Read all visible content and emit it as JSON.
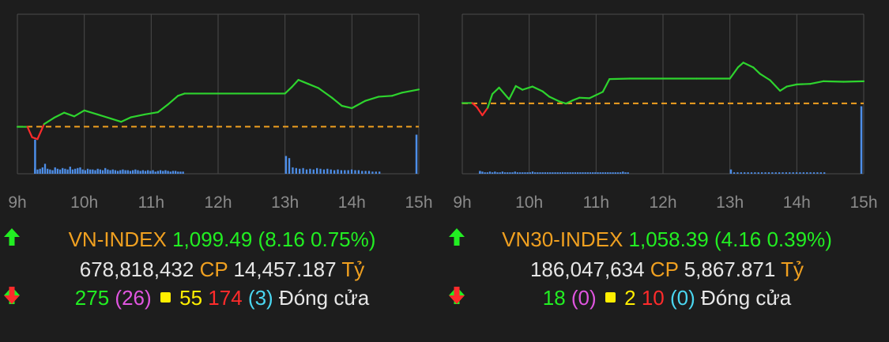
{
  "colors": {
    "up": "#22ee22",
    "down": "#ff2b2b",
    "ref": "#f0a020",
    "ceiling": "#e055e0",
    "floor": "#4ad6f0",
    "unchanged": "#ffee00",
    "line": "#2ed42e",
    "volume": "#4d8ee8",
    "grid": "#4a4a4a",
    "text": "#e6e6e6",
    "name": "#f0a020"
  },
  "panels": [
    {
      "name": "VN-INDEX",
      "value": "1,099.49",
      "change": "(8.16 0.75%)",
      "volume": "678,818,432",
      "cp_label": "CP",
      "amount": "14,457.187",
      "unit": "Tỷ",
      "advances": "275",
      "ceiling_count": "(26)",
      "unchanged": "55",
      "declines": "174",
      "floor_count": "(3)",
      "status": "Đóng cửa"
    },
    {
      "name": "VN30-INDEX",
      "value": "1,058.39",
      "change": "(4.16 0.39%)",
      "volume": "186,047,634",
      "cp_label": "CP",
      "amount": "5,867.871",
      "unit": "Tỷ",
      "advances": "18",
      "ceiling_count": "(0)",
      "unchanged": "2",
      "declines": "10",
      "floor_count": "(0)",
      "status": "Đóng cửa"
    }
  ],
  "chart_data": [
    {
      "type": "line",
      "title": "VN-INDEX",
      "x_ticks": [
        "9h",
        "10h",
        "11h",
        "12h",
        "13h",
        "14h",
        "15h"
      ],
      "reference": 1091.33,
      "ylim": [
        1081,
        1116
      ],
      "series": [
        {
          "x": [
            9.0,
            9.15,
            9.22,
            9.3,
            9.4,
            9.55,
            9.7,
            9.85,
            10.0,
            10.2,
            10.4,
            10.55,
            10.7,
            10.9,
            11.1,
            11.25,
            11.4,
            11.5,
            11.8,
            12.3,
            12.8,
            13.0,
            13.1,
            13.2,
            13.35,
            13.5,
            13.7,
            13.85,
            14.0,
            14.2,
            14.4,
            14.6,
            14.75,
            15.0
          ],
          "y": [
            1091.3,
            1091.3,
            1089.0,
            1088.6,
            1091.9,
            1093.3,
            1094.4,
            1093.6,
            1094.9,
            1094.0,
            1093.1,
            1092.4,
            1093.4,
            1094.0,
            1094.5,
            1096.2,
            1098.1,
            1098.6,
            1098.6,
            1098.6,
            1098.6,
            1098.6,
            1100.0,
            1101.6,
            1100.7,
            1099.8,
            1097.7,
            1095.9,
            1095.4,
            1097.0,
            1097.9,
            1098.1,
            1098.8,
            1099.49
          ]
        }
      ],
      "volume_bars": [
        8,
        6,
        7,
        9,
        14,
        7,
        6,
        5,
        9,
        7,
        6,
        8,
        7,
        6,
        10,
        6,
        7,
        8,
        9,
        6,
        5,
        7,
        6,
        6,
        5,
        7,
        6,
        5,
        8,
        6,
        5,
        6,
        5,
        4,
        5,
        6,
        5,
        5,
        4,
        5,
        6,
        5,
        4,
        5,
        4,
        5,
        4,
        5,
        3,
        4,
        5,
        4,
        5,
        4,
        3,
        4,
        4,
        3,
        3,
        3,
        22,
        9,
        8,
        7,
        8,
        6,
        7,
        6,
        8,
        7,
        6,
        7,
        6,
        5,
        6,
        5,
        5,
        5,
        6,
        5,
        5,
        4,
        4,
        4,
        3,
        3,
        3
      ],
      "opening_spike": 48,
      "close_spike": 55,
      "afternoon_spike": 25
    },
    {
      "type": "line",
      "title": "VN30-INDEX",
      "x_ticks": [
        "9h",
        "10h",
        "11h",
        "12h",
        "13h",
        "14h",
        "15h"
      ],
      "reference": 1054.23,
      "ylim": [
        1041,
        1071
      ],
      "series": [
        {
          "x": [
            9.0,
            9.15,
            9.22,
            9.3,
            9.38,
            9.45,
            9.55,
            9.7,
            9.8,
            9.9,
            10.05,
            10.2,
            10.3,
            10.45,
            10.55,
            10.65,
            10.75,
            10.9,
            11.1,
            11.2,
            11.5,
            12.0,
            12.5,
            13.0,
            13.12,
            13.2,
            13.35,
            13.45,
            13.6,
            13.75,
            13.85,
            14.0,
            14.2,
            14.4,
            14.7,
            15.0
          ],
          "y": [
            1054.3,
            1054.3,
            1053.5,
            1052.0,
            1053.4,
            1056.0,
            1057.2,
            1055.0,
            1057.5,
            1056.8,
            1057.4,
            1056.5,
            1055.5,
            1054.6,
            1054.2,
            1054.8,
            1055.3,
            1055.2,
            1056.4,
            1058.8,
            1058.9,
            1058.9,
            1058.9,
            1058.9,
            1061.0,
            1061.9,
            1061.0,
            1059.8,
            1058.6,
            1056.6,
            1057.4,
            1057.8,
            1057.9,
            1058.4,
            1058.3,
            1058.39
          ]
        }
      ],
      "volume_bars": [
        2,
        3,
        2,
        2,
        3,
        2,
        3,
        2,
        2,
        3,
        2,
        2,
        2,
        2,
        3,
        2,
        2,
        2,
        2,
        2,
        2,
        3,
        2,
        2,
        2,
        2,
        2,
        2,
        2,
        2,
        2,
        2,
        2,
        2,
        2,
        2,
        2,
        2,
        2,
        2,
        2,
        2,
        2,
        2,
        2,
        2,
        2,
        2,
        2,
        2,
        2,
        2,
        2,
        2,
        2,
        2,
        2,
        3,
        2,
        2,
        2,
        2,
        2,
        2,
        2,
        2,
        2,
        2,
        2,
        2,
        2,
        2,
        2,
        2,
        2,
        2,
        2,
        2,
        2,
        2,
        2,
        2,
        2,
        2,
        2,
        2,
        2
      ],
      "opening_spike": 4,
      "close_spike": 95,
      "afternoon_spike": 6
    }
  ]
}
